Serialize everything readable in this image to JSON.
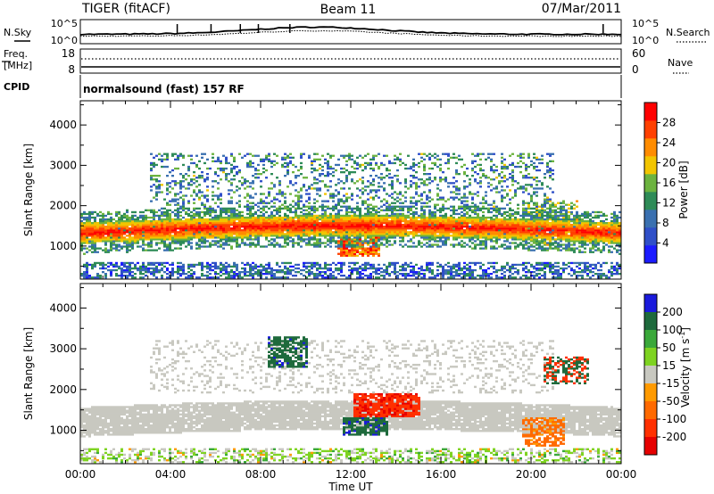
{
  "header": {
    "radar": "TIGER (fitACF)",
    "beam": "Beam 11",
    "date": "07/Mar/2011"
  },
  "status_panels": {
    "nsky_label": "N.Sky",
    "nsearch_label": "N.Search",
    "noise_ticks": [
      "10^5",
      "10^0"
    ],
    "freq_label_1": "Freq.",
    "freq_label_2": "[MHz]",
    "freq_ticks": [
      "18",
      "8"
    ],
    "nave_label": "Nave",
    "nave_ticks": [
      "60",
      "0"
    ],
    "cpid_label": "CPID",
    "cpid_text": "normalsound (fast) 157 RF"
  },
  "chart_data": [
    {
      "type": "heatmap",
      "name": "power",
      "xlabel": "",
      "ylabel": "Slant Range [km]",
      "xlim_hours": [
        0,
        24
      ],
      "ylim": [
        180,
        4600
      ],
      "yticks": [
        "1000",
        "2000",
        "3000",
        "4000"
      ],
      "colorbar": {
        "label": "Power [dB]",
        "range": [
          0,
          32
        ],
        "ticks": [
          "4",
          "8",
          "12",
          "16",
          "20",
          "24",
          "28"
        ],
        "colors": [
          "#1b1bff",
          "#2f4fc8",
          "#3a70b0",
          "#2e8b57",
          "#6cb33f",
          "#f2c500",
          "#ff8c00",
          "#ff4000",
          "#ff0000"
        ]
      },
      "features": [
        {
          "label": "main_band",
          "x_hours": [
            0,
            24
          ],
          "range_km": [
            1100,
            2100
          ],
          "power_db": [
            16,
            30
          ]
        },
        {
          "label": "upper_patchy",
          "x_hours": [
            3,
            21
          ],
          "range_km": [
            1900,
            3300
          ],
          "power_db": [
            4,
            20
          ]
        },
        {
          "label": "near_range_clutter",
          "x_hours": [
            0,
            24
          ],
          "range_km": [
            200,
            600
          ],
          "power_db": [
            4,
            16
          ]
        }
      ]
    },
    {
      "type": "heatmap",
      "name": "velocity",
      "xlabel": "Time UT",
      "ylabel": "Slant Range [km]",
      "xlim_hours": [
        0,
        24
      ],
      "xticks": [
        "00:00",
        "04:00",
        "08:00",
        "12:00",
        "16:00",
        "20:00",
        "00:00"
      ],
      "ylim": [
        180,
        4600
      ],
      "yticks": [
        "1000",
        "2000",
        "3000",
        "4000"
      ],
      "colorbar": {
        "label": "Velocity [m s",
        "label_sup": "-1",
        "label_end": "]",
        "ticks": [
          "200",
          "100",
          "50",
          "15",
          "-15",
          "-50",
          "-100",
          "-200"
        ],
        "colors": [
          "#1a1adc",
          "#1e6a3c",
          "#3aa83a",
          "#7ed321",
          "#c8c8c0",
          "#ff9a00",
          "#ff6a00",
          "#ff3000",
          "#e60000"
        ]
      },
      "features": [
        {
          "label": "ground_scatter_band",
          "x_hours": [
            0,
            24
          ],
          "range_km": [
            800,
            1600
          ],
          "velocity": [
            -15,
            15
          ]
        },
        {
          "label": "negative_patch",
          "x_hours": [
            12,
            15
          ],
          "range_km": [
            1300,
            1900
          ],
          "velocity": [
            -200,
            -100
          ]
        },
        {
          "label": "positive_patch",
          "x_hours": [
            11.5,
            13.5
          ],
          "range_km": [
            850,
            1300
          ],
          "velocity": [
            100,
            200
          ]
        },
        {
          "label": "positive_upper_patch",
          "x_hours": [
            8.3,
            10
          ],
          "range_km": [
            2500,
            3300
          ],
          "velocity": [
            100,
            200
          ]
        }
      ]
    }
  ],
  "colors": {
    "frame": "#000000",
    "background": "#ffffff"
  }
}
